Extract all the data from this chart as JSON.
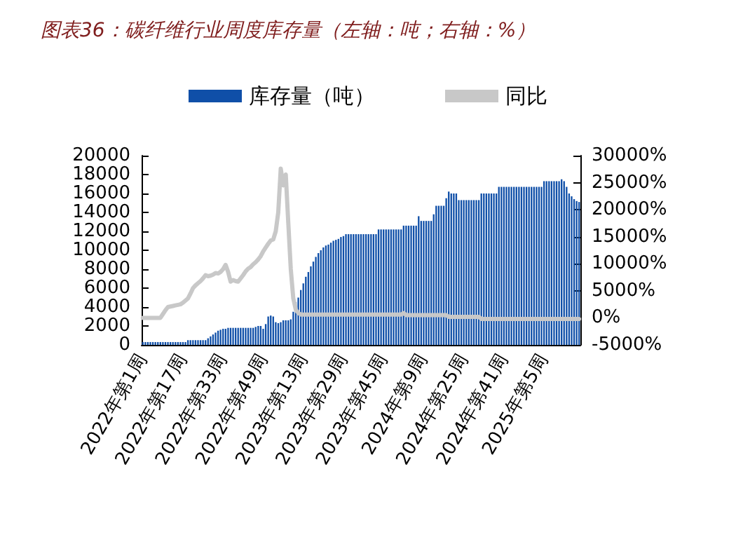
{
  "chart_data": {
    "type": "bar",
    "title": "图表36：碳纤维行业周度库存量（左轴：吨；右轴：%）",
    "categories": [
      "2022年第1周",
      null,
      null,
      null,
      null,
      null,
      null,
      null,
      null,
      null,
      null,
      null,
      null,
      null,
      null,
      null,
      "2022年第17周",
      null,
      null,
      null,
      null,
      null,
      null,
      null,
      null,
      null,
      null,
      null,
      null,
      null,
      null,
      null,
      "2022年第33周",
      null,
      null,
      null,
      null,
      null,
      null,
      null,
      null,
      null,
      null,
      null,
      null,
      null,
      null,
      null,
      "2022年第49周",
      null,
      null,
      null,
      null,
      null,
      null,
      null,
      null,
      null,
      null,
      null,
      null,
      null,
      null,
      null,
      "2023年第13周",
      null,
      null,
      null,
      null,
      null,
      null,
      null,
      null,
      null,
      null,
      null,
      null,
      null,
      null,
      null,
      "2023年第29周",
      null,
      null,
      null,
      null,
      null,
      null,
      null,
      null,
      null,
      null,
      null,
      null,
      null,
      null,
      null,
      "2023年第45周",
      null,
      null,
      null,
      null,
      null,
      null,
      null,
      null,
      null,
      null,
      null,
      null,
      null,
      null,
      null,
      "2024年第9周",
      null,
      null,
      null,
      null,
      null,
      null,
      null,
      null,
      null,
      null,
      null,
      null,
      null,
      null,
      null,
      "2024年第25周",
      null,
      null,
      null,
      null,
      null,
      null,
      null,
      null,
      null,
      null,
      null,
      null,
      null,
      null,
      null,
      "2024年第41周",
      null,
      null,
      null,
      null,
      null,
      null,
      null,
      null,
      null,
      null,
      null,
      null,
      null,
      null,
      null,
      "2025年第5周",
      null,
      null,
      null,
      null,
      null,
      null,
      null,
      null,
      null,
      null,
      null,
      null,
      null,
      null
    ],
    "series": [
      {
        "name": "库存量（吨）",
        "color": "#0f4fa8",
        "values": [
          300,
          300,
          300,
          300,
          300,
          300,
          300,
          300,
          300,
          300,
          300,
          300,
          300,
          300,
          300,
          300,
          300,
          300,
          500,
          500,
          500,
          500,
          500,
          500,
          500,
          500,
          700,
          900,
          1100,
          1300,
          1500,
          1600,
          1700,
          1700,
          1800,
          1800,
          1800,
          1800,
          1800,
          1800,
          1800,
          1800,
          1800,
          1800,
          1800,
          1900,
          2000,
          2000,
          1700,
          2200,
          3000,
          3100,
          3000,
          2400,
          2300,
          2400,
          2600,
          2600,
          2600,
          2700,
          3500,
          4500,
          5000,
          5800,
          6500,
          7200,
          7700,
          8300,
          8800,
          9300,
          9700,
          10000,
          10300,
          10500,
          10600,
          10800,
          11000,
          11100,
          11200,
          11400,
          11500,
          11700,
          11700,
          11700,
          11700,
          11700,
          11700,
          11700,
          11700,
          11700,
          11700,
          11700,
          11700,
          11700,
          12200,
          12200,
          12200,
          12200,
          12200,
          12200,
          12200,
          12200,
          12200,
          12200,
          12600,
          12600,
          12600,
          12600,
          12600,
          12600,
          13600,
          13100,
          13100,
          13100,
          13100,
          13100,
          13800,
          14700,
          14700,
          14700,
          14700,
          15500,
          16200,
          16000,
          16000,
          16000,
          15300,
          15300,
          15300,
          15300,
          15300,
          15300,
          15300,
          15300,
          15300,
          16000,
          16000,
          16000,
          16000,
          16000,
          16000,
          16000,
          16700,
          16700,
          16700,
          16700,
          16700,
          16700,
          16700,
          16700,
          16700,
          16700,
          16700,
          16700,
          16700,
          16700,
          16700,
          16700,
          16700,
          16700,
          17300,
          17300,
          17300,
          17300,
          17300,
          17300,
          17300,
          17500,
          17300,
          16700,
          16000,
          15700,
          15400,
          15200,
          15100
        ]
      },
      {
        "name": "同比",
        "type": "line",
        "axis": "y2",
        "color": "#c8c8c8",
        "values": [
          0,
          0,
          0,
          0,
          0,
          0,
          0,
          0,
          700,
          1400,
          2000,
          2100,
          2200,
          2300,
          2400,
          2500,
          2800,
          3200,
          3600,
          4500,
          5500,
          6000,
          6400,
          6800,
          7300,
          7900,
          7700,
          7800,
          8000,
          8300,
          8200,
          8500,
          9000,
          9800,
          8500,
          6700,
          7000,
          6800,
          6700,
          7300,
          7900,
          8600,
          9100,
          9400,
          9900,
          10300,
          10800,
          11400,
          12300,
          13000,
          13700,
          14300,
          14500,
          16000,
          19500,
          27600,
          24500,
          26500,
          17600,
          9000,
          3600,
          1500,
          900,
          600,
          600,
          600,
          600,
          600,
          600,
          600,
          600,
          600,
          600,
          600,
          600,
          600,
          600,
          600,
          600,
          600,
          600,
          600,
          600,
          600,
          600,
          600,
          600,
          600,
          600,
          600,
          600,
          600,
          600,
          600,
          600,
          600,
          600,
          600,
          600,
          600,
          600,
          600,
          600,
          600,
          900,
          500,
          500,
          500,
          500,
          500,
          500,
          500,
          500,
          500,
          500,
          500,
          500,
          500,
          500,
          500,
          500,
          500,
          200,
          200,
          200,
          200,
          200,
          200,
          200,
          200,
          200,
          200,
          200,
          200,
          200,
          -200,
          -200,
          -200,
          -200,
          -200,
          -200,
          -200,
          -200,
          -200,
          -200,
          -200,
          -200,
          -200,
          -200,
          -200,
          -200,
          -200,
          -200,
          -200,
          -200,
          -200,
          -200,
          -200,
          -200,
          -200,
          -200,
          -200,
          -200,
          -200,
          -200,
          -200,
          -200,
          -200,
          -200,
          -200,
          -200,
          -200,
          -200,
          -200,
          -200
        ]
      }
    ],
    "ylim": [
      0,
      20000
    ],
    "yticks": [
      0,
      2000,
      4000,
      6000,
      8000,
      10000,
      12000,
      14000,
      16000,
      18000,
      20000
    ],
    "y2lim": [
      -5000,
      30000
    ],
    "y2ticks": [
      {
        "value": -5000,
        "label": "-5000%"
      },
      {
        "value": 0,
        "label": "0%"
      },
      {
        "value": 5000,
        "label": "5000%"
      },
      {
        "value": 10000,
        "label": "10000%"
      },
      {
        "value": 15000,
        "label": "15000%"
      },
      {
        "value": 20000,
        "label": "20000%"
      },
      {
        "value": 25000,
        "label": "25000%"
      },
      {
        "value": 30000,
        "label": "30000%"
      }
    ],
    "grid": false,
    "legend": "top",
    "marker": "none",
    "line_style": "solid"
  }
}
